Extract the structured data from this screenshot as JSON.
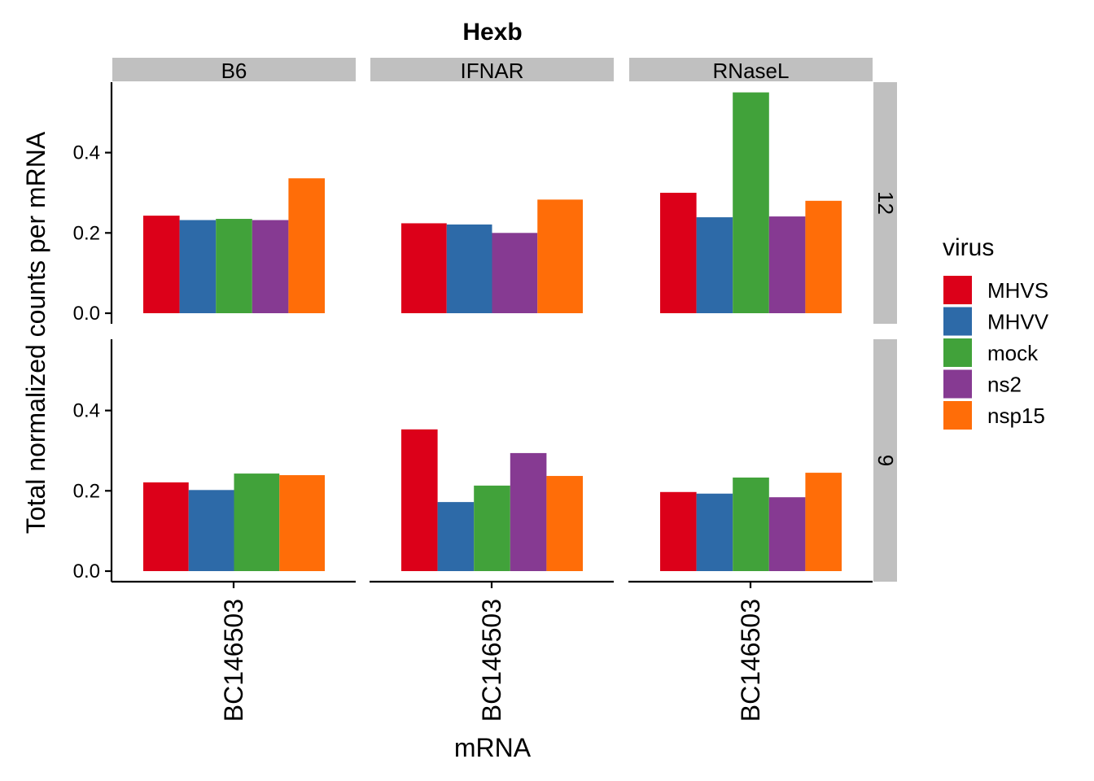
{
  "chart_data": {
    "type": "bar",
    "title": "Hexb",
    "xlabel": "mRNA",
    "ylabel": "Total normalized counts per mRNA",
    "ylim": [
      0,
      0.58
    ],
    "yticks": [
      "0.0",
      "0.2",
      "0.4"
    ],
    "x_category": "BC146503",
    "columns": [
      "B6",
      "IFNAR",
      "RNaseL"
    ],
    "rows": [
      "12",
      "9"
    ],
    "legend": {
      "title": "virus",
      "position": "right",
      "items": [
        {
          "name": "MHVS",
          "color": "#dc0019"
        },
        {
          "name": "MHVV",
          "color": "#2d6aa8"
        },
        {
          "name": "mock",
          "color": "#41a23a"
        },
        {
          "name": "ns2",
          "color": "#863a92"
        },
        {
          "name": "nsp15",
          "color": "#ff6d08"
        }
      ]
    },
    "panels": [
      {
        "row": "12",
        "column": "B6",
        "bars": [
          {
            "virus": "MHVS",
            "value": 0.243
          },
          {
            "virus": "MHVV",
            "value": 0.232
          },
          {
            "virus": "mock",
            "value": 0.235
          },
          {
            "virus": "ns2",
            "value": 0.232
          },
          {
            "virus": "nsp15",
            "value": 0.336
          }
        ]
      },
      {
        "row": "12",
        "column": "IFNAR",
        "bars": [
          {
            "virus": "MHVS",
            "value": 0.224
          },
          {
            "virus": "MHVV",
            "value": 0.221
          },
          {
            "virus": "ns2",
            "value": 0.2
          },
          {
            "virus": "nsp15",
            "value": 0.283
          }
        ]
      },
      {
        "row": "12",
        "column": "RNaseL",
        "bars": [
          {
            "virus": "MHVS",
            "value": 0.3
          },
          {
            "virus": "MHVV",
            "value": 0.239
          },
          {
            "virus": "mock",
            "value": 0.55
          },
          {
            "virus": "ns2",
            "value": 0.241
          },
          {
            "virus": "nsp15",
            "value": 0.28
          }
        ]
      },
      {
        "row": "9",
        "column": "B6",
        "bars": [
          {
            "virus": "MHVS",
            "value": 0.221
          },
          {
            "virus": "MHVV",
            "value": 0.202
          },
          {
            "virus": "mock",
            "value": 0.243
          },
          {
            "virus": "nsp15",
            "value": 0.239
          }
        ]
      },
      {
        "row": "9",
        "column": "IFNAR",
        "bars": [
          {
            "virus": "MHVS",
            "value": 0.353
          },
          {
            "virus": "MHVV",
            "value": 0.172
          },
          {
            "virus": "mock",
            "value": 0.213
          },
          {
            "virus": "ns2",
            "value": 0.294
          },
          {
            "virus": "nsp15",
            "value": 0.237
          }
        ]
      },
      {
        "row": "9",
        "column": "RNaseL",
        "bars": [
          {
            "virus": "MHVS",
            "value": 0.197
          },
          {
            "virus": "MHVV",
            "value": 0.193
          },
          {
            "virus": "mock",
            "value": 0.233
          },
          {
            "virus": "ns2",
            "value": 0.184
          },
          {
            "virus": "nsp15",
            "value": 0.245
          }
        ]
      }
    ]
  }
}
